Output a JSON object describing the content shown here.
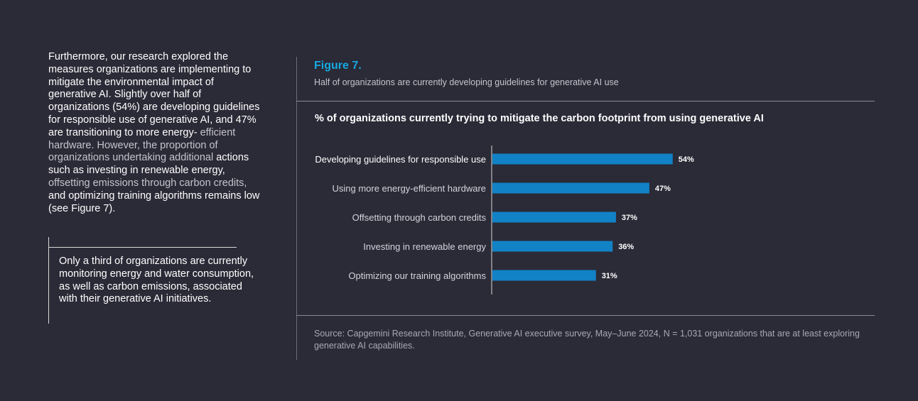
{
  "body": {
    "part1": "Furthermore, our research explored the measures organizations are implementing to mitigate the environmental impact of generative AI. Slightly over half of organizations (54%) are developing guidelines for responsible use of generative AI, and 47% are transitioning to more energy-",
    "part2": "efficient hardware. However, the proportion of organizations undertaking additional",
    "part3": "actions such as investing in renewable energy,",
    "part4": "offsetting emissions through carbon credits,",
    "part5": "and optimizing training algorithms remains low (see Figure 7)."
  },
  "callout": {
    "text": "Only a third of organizations are currently monitoring energy and water consumption, as well as carbon emissions, associated with their generative AI initiatives."
  },
  "figure": {
    "title": "Figure 7.",
    "subtitle": "Half of organizations are currently developing guidelines for generative AI use",
    "source": "Source: Capgemini Research Institute, Generative AI executive survey, May–June 2024, N = 1,031 organizations that are at least exploring generative AI capabilities."
  },
  "colors": {
    "background": "#2b2a37",
    "accent": "#16a9e1",
    "bar": "#1282c6"
  },
  "chart_data": {
    "type": "bar",
    "orientation": "horizontal",
    "title": "% of organizations currently trying to mitigate the carbon footprint from using generative AI",
    "categories": [
      "Developing guidelines for responsible use",
      "Using more energy-efficient hardware",
      "Offsetting through carbon credits",
      "Investing in renewable energy",
      "Optimizing our training algorithms"
    ],
    "values": [
      54,
      47,
      37,
      36,
      31
    ],
    "value_labels": [
      "54%",
      "47%",
      "37%",
      "36%",
      "31%"
    ],
    "xlim": [
      0,
      100
    ],
    "xlabel": "",
    "ylabel": ""
  }
}
